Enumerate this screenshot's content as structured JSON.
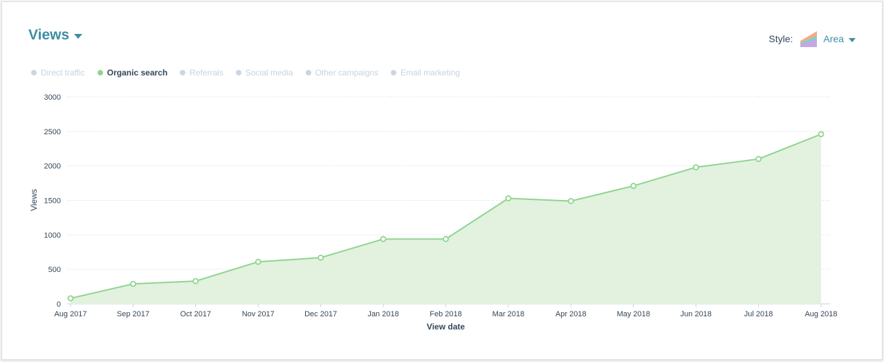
{
  "header": {
    "title": "Views",
    "style_label": "Style:",
    "style_value": "Area",
    "style_icon": "area-chart-icon"
  },
  "legend": [
    {
      "label": "Direct traffic",
      "active": false
    },
    {
      "label": "Organic search",
      "active": true
    },
    {
      "label": "Referrals",
      "active": false
    },
    {
      "label": "Social media",
      "active": false
    },
    {
      "label": "Other campaigns",
      "active": false
    },
    {
      "label": "Email marketing",
      "active": false
    }
  ],
  "colors": {
    "accent": "#3c8ea6",
    "series_line": "#8fd48f",
    "series_fill": "#e2f2df",
    "inactive_dot": "#cbd6e2"
  },
  "chart_data": {
    "type": "area",
    "title": "Views",
    "xlabel": "View date",
    "ylabel": "Views",
    "ylim": [
      0,
      3000
    ],
    "yticks": [
      0,
      500,
      1000,
      1500,
      2000,
      2500,
      3000
    ],
    "grid": true,
    "categories": [
      "Aug 2017",
      "Sep 2017",
      "Oct 2017",
      "Nov 2017",
      "Dec 2017",
      "Jan 2018",
      "Feb 2018",
      "Mar 2018",
      "Apr 2018",
      "May 2018",
      "Jun 2018",
      "Jul 2018",
      "Aug 2018"
    ],
    "series": [
      {
        "name": "Organic search",
        "values": [
          80,
          290,
          330,
          610,
          670,
          940,
          940,
          1530,
          1490,
          1710,
          1980,
          2100,
          2460
        ]
      }
    ]
  }
}
